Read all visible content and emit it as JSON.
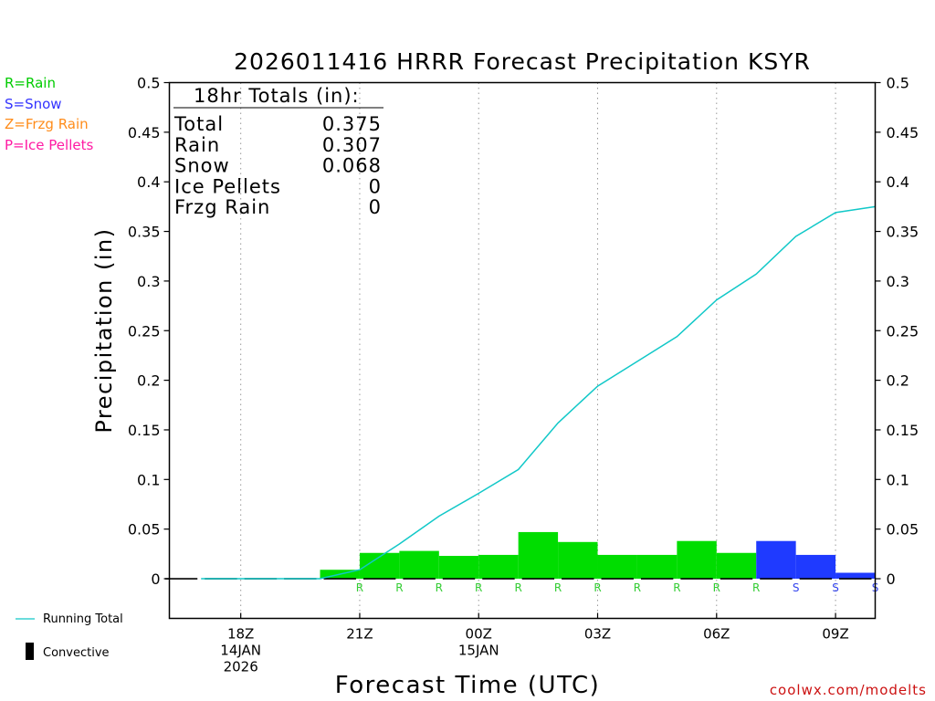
{
  "chart_data": {
    "type": "bar",
    "title": "2026011416 HRRR Forecast Precipitation KSYR",
    "xlabel": "Forecast Time (UTC)",
    "ylabel": "Precipitation (in)",
    "ylim": [
      -0.04,
      0.5
    ],
    "yticks": [
      0,
      0.05,
      0.1,
      0.15,
      0.2,
      0.25,
      0.3,
      0.35,
      0.4,
      0.45,
      0.5
    ],
    "ytick_labels": [
      "0",
      "0.05",
      "0.1",
      "0.15",
      "0.2",
      "0.25",
      "0.3",
      "0.35",
      "0.4",
      "0.45",
      "0.5"
    ],
    "xlim_hours": [
      16.2,
      34
    ],
    "x_ticks": [
      {
        "hour": 18,
        "lines": [
          "18Z",
          "14JAN",
          "2026"
        ]
      },
      {
        "hour": 21,
        "lines": [
          "21Z"
        ]
      },
      {
        "hour": 24,
        "lines": [
          "00Z",
          "15JAN"
        ]
      },
      {
        "hour": 27,
        "lines": [
          "03Z"
        ]
      },
      {
        "hour": 30,
        "lines": [
          "06Z"
        ]
      },
      {
        "hour": 33,
        "lines": [
          "09Z"
        ]
      }
    ],
    "bars": [
      {
        "hour": 17,
        "value": 0,
        "type": ""
      },
      {
        "hour": 18,
        "value": 0,
        "type": ""
      },
      {
        "hour": 19,
        "value": 0,
        "type": ""
      },
      {
        "hour": 20,
        "value": 0,
        "type": ""
      },
      {
        "hour": 21,
        "value": 0.009,
        "type": "R"
      },
      {
        "hour": 22,
        "value": 0.026,
        "type": "R"
      },
      {
        "hour": 23,
        "value": 0.028,
        "type": "R"
      },
      {
        "hour": 24,
        "value": 0.023,
        "type": "R"
      },
      {
        "hour": 25,
        "value": 0.024,
        "type": "R"
      },
      {
        "hour": 26,
        "value": 0.047,
        "type": "R"
      },
      {
        "hour": 27,
        "value": 0.037,
        "type": "R"
      },
      {
        "hour": 28,
        "value": 0.024,
        "type": "R"
      },
      {
        "hour": 29,
        "value": 0.024,
        "type": "R"
      },
      {
        "hour": 30,
        "value": 0.038,
        "type": "R"
      },
      {
        "hour": 31,
        "value": 0.026,
        "type": "R"
      },
      {
        "hour": 32,
        "value": 0.038,
        "type": "S"
      },
      {
        "hour": 33,
        "value": 0.024,
        "type": "S"
      },
      {
        "hour": 34,
        "value": 0.006,
        "type": "S"
      }
    ],
    "running_total": {
      "name": "Running Total",
      "hours": [
        17,
        18,
        19,
        20,
        21,
        22,
        23,
        24,
        25,
        26,
        27,
        28,
        29,
        30,
        31,
        32,
        33,
        34
      ],
      "values": [
        0,
        0,
        0,
        0,
        0.009,
        0.035,
        0.063,
        0.086,
        0.11,
        0.157,
        0.194,
        0.219,
        0.244,
        0.281,
        0.307,
        0.345,
        0.369,
        0.375
      ]
    },
    "colors": {
      "rain": "#00dd00",
      "snow": "#1f3aff",
      "running_total": "#11c8c8",
      "rain_label": "#33cc33",
      "snow_label": "#3344ee"
    },
    "totals": {
      "header": "18hr Totals (in):",
      "rows": [
        {
          "label": "Total",
          "value": "0.375"
        },
        {
          "label": "Rain",
          "value": "0.307"
        },
        {
          "label": "Snow",
          "value": "0.068"
        },
        {
          "label": "Ice Pellets",
          "value": "0"
        },
        {
          "label": "Frzg Rain",
          "value": "0"
        }
      ]
    },
    "type_legend": {
      "rain": "R=Rain",
      "snow": "S=Snow",
      "frzg_rain": "Z=Frzg Rain",
      "ice_pellets": "P=Ice Pellets"
    },
    "bottom_legend": {
      "running_total": "Running Total",
      "convective": "Convective"
    },
    "credit": "coolwx.com/modelts"
  }
}
